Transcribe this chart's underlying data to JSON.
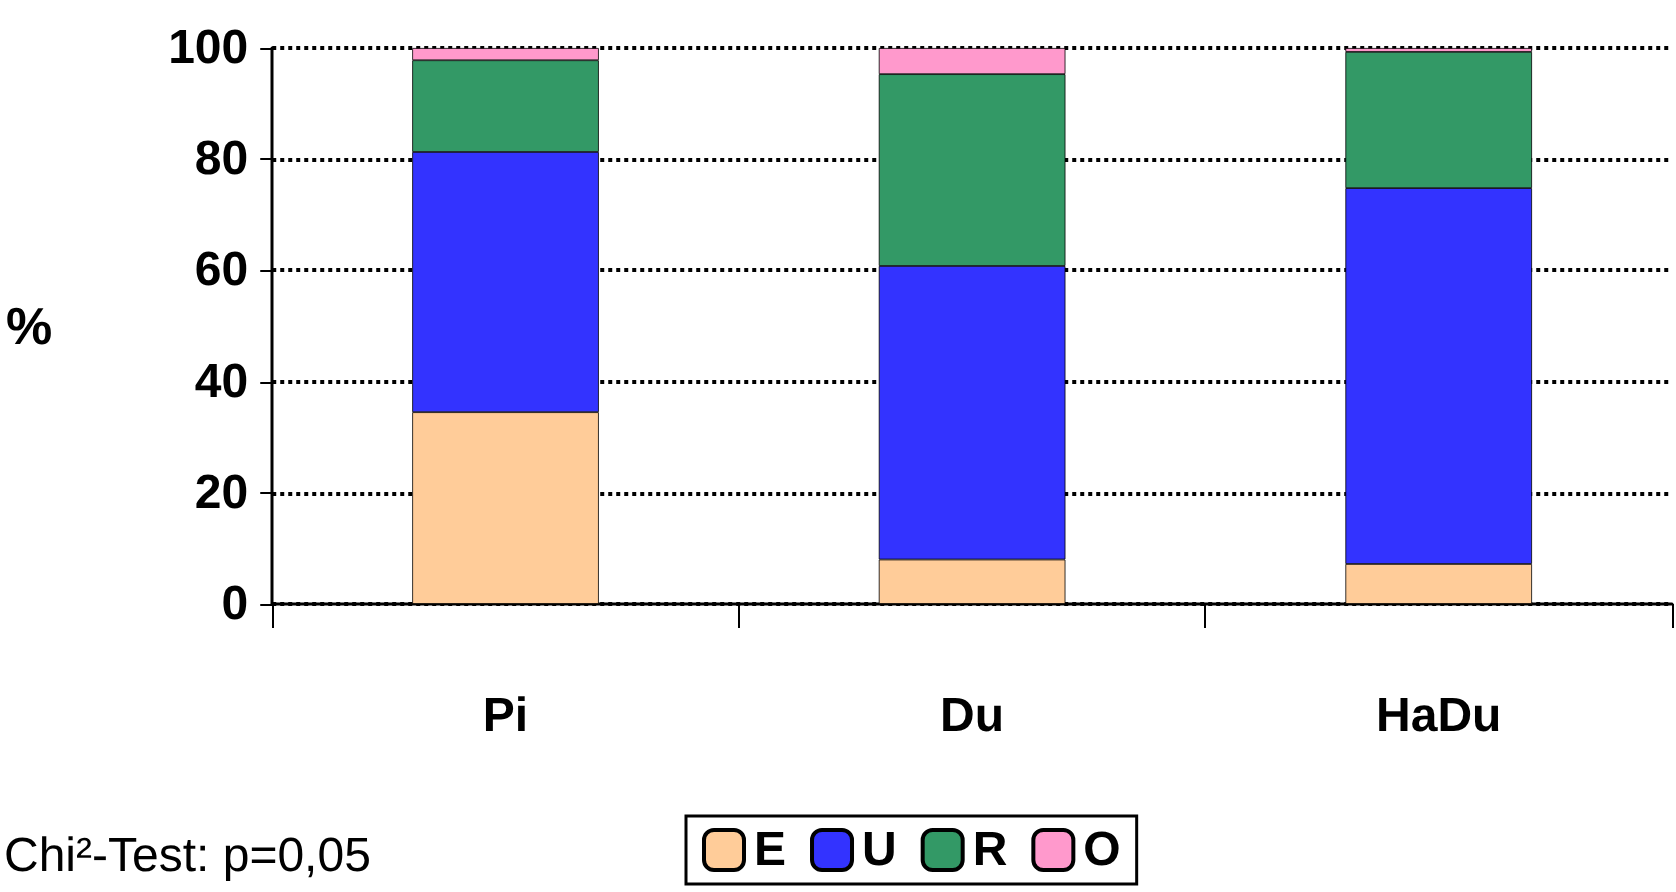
{
  "chart_data": {
    "type": "bar",
    "stacked": true,
    "categories": [
      "Pi",
      "Du",
      "HaDu"
    ],
    "ylabel": "%",
    "ylim": [
      0,
      100
    ],
    "yticks": [
      0,
      20,
      40,
      60,
      80,
      100
    ],
    "grid": "y",
    "legend": "bottom",
    "annotations": [
      "Chi²-Test: p=0,05"
    ],
    "series": [
      {
        "name": "E",
        "color": "#ffcc99",
        "values": [
          34.5,
          8,
          7.2
        ]
      },
      {
        "name": "U",
        "color": "#3333ff",
        "values": [
          46.8,
          52.8,
          67.6
        ]
      },
      {
        "name": "R",
        "color": "#339966",
        "values": [
          16.5,
          34.5,
          24.5
        ]
      },
      {
        "name": "O",
        "color": "#ff99cc",
        "values": [
          2.2,
          4.7,
          0.7
        ]
      }
    ]
  }
}
